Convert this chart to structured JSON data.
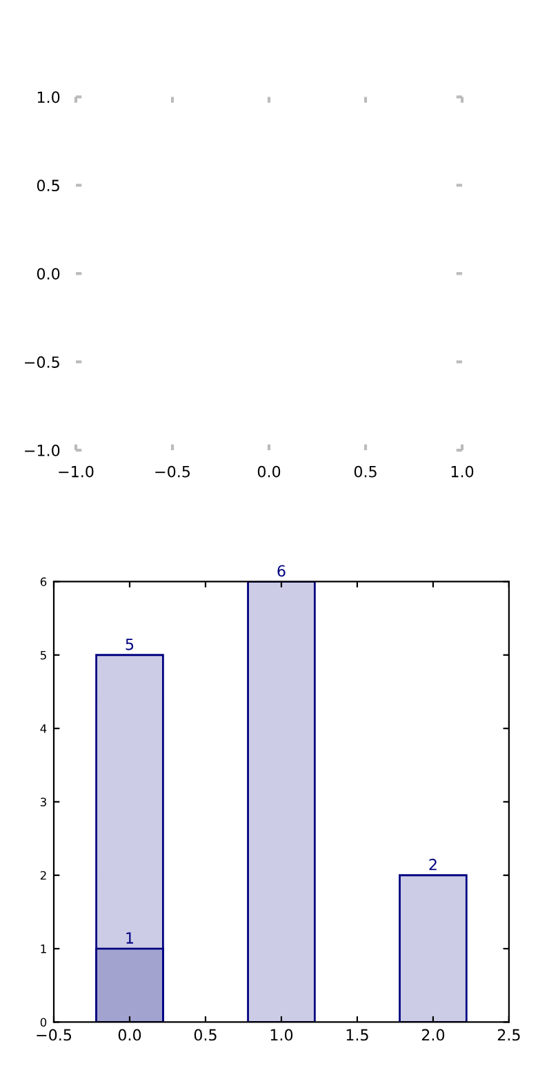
{
  "chart_data": [
    {
      "type": "scatter",
      "xlim": [
        -1,
        1
      ],
      "ylim": [
        -1,
        1
      ],
      "xticks": [
        {
          "value": -1,
          "label": "−1.0"
        },
        {
          "value": -0.5,
          "label": "−0.5"
        },
        {
          "value": 0,
          "label": "0.0"
        },
        {
          "value": 0.5,
          "label": "0.5"
        },
        {
          "value": 1,
          "label": "1.0"
        }
      ],
      "yticks": [
        {
          "value": -1,
          "label": "−1.0"
        },
        {
          "value": -0.5,
          "label": "−0.5"
        },
        {
          "value": 0,
          "label": "0.0"
        },
        {
          "value": 0.5,
          "label": "0.5"
        },
        {
          "value": 1,
          "label": "1.0"
        }
      ]
    },
    {
      "type": "bar",
      "x": [
        0,
        1,
        2
      ],
      "xlim": [
        -0.5,
        2.5
      ],
      "ylim": [
        0,
        6
      ],
      "xticks": [
        {
          "value": -0.5,
          "label": "−0.5"
        },
        {
          "value": 0,
          "label": "0.0"
        },
        {
          "value": 0.5,
          "label": "0.5"
        },
        {
          "value": 1,
          "label": "1.0"
        },
        {
          "value": 1.5,
          "label": "1.5"
        },
        {
          "value": 2,
          "label": "2.0"
        },
        {
          "value": 2.5,
          "label": "2.5"
        }
      ],
      "yticks": [
        0,
        1,
        2,
        3,
        4,
        5,
        6
      ],
      "data_labels": true,
      "series": [
        {
          "color": "#cccce6",
          "values": [
            5,
            6,
            2
          ]
        },
        {
          "color": "#a3a3d0",
          "values": [
            1,
            null,
            null
          ]
        }
      ]
    }
  ]
}
